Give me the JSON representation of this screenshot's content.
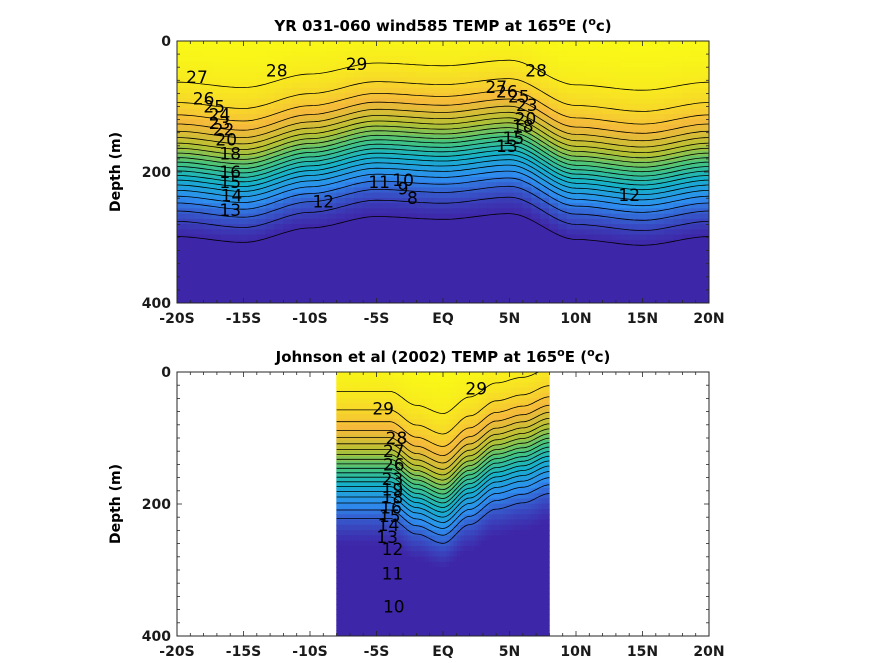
{
  "chart_data": [
    {
      "type": "heatmap",
      "subtype": "filled-contour",
      "title": "YR 031-060 wind585 TEMP at 165",
      "title_suffix_deg": "o",
      "title_mid": "E (",
      "title_unit_deg": "o",
      "title_end": "c)",
      "ylabel": "Depth (m)",
      "xlim": [
        -20,
        20
      ],
      "ylim": [
        400,
        0
      ],
      "y_reversed": true,
      "data_xlim": [
        -20,
        20
      ],
      "x_ticks": [
        -20,
        -15,
        -10,
        -5,
        0,
        5,
        10,
        15,
        20
      ],
      "x_tick_labels": [
        "-20S",
        "-15S",
        "-10S",
        "-5S",
        "EQ",
        "5N",
        "10N",
        "15N",
        "20N"
      ],
      "y_ticks": [
        0,
        200,
        400
      ],
      "y_tick_labels": [
        "0",
        "200",
        "400"
      ],
      "colormap": [
        "#3e26a8",
        "#2e8ef0",
        "#15b1c9",
        "#45c47e",
        "#b6c132",
        "#f5b93b",
        "#f9fb15"
      ],
      "color_range": [
        8,
        30
      ],
      "x": [
        -20,
        -15,
        -10,
        -5,
        0,
        5,
        10,
        15,
        20
      ],
      "thermocline_depth_m": [
        190,
        200,
        175,
        155,
        160,
        150,
        195,
        205,
        190
      ],
      "contour_levels": [
        8,
        9,
        10,
        11,
        12,
        13,
        14,
        15,
        16,
        17,
        18,
        19,
        20,
        21,
        22,
        23,
        24,
        25,
        26,
        27,
        28,
        29
      ],
      "contour_labels": [
        {
          "text": "29",
          "x": -6.5,
          "y": 35
        },
        {
          "text": "28",
          "x": -12.5,
          "y": 45
        },
        {
          "text": "28",
          "x": 7,
          "y": 45
        },
        {
          "text": "27",
          "x": -18.5,
          "y": 55
        },
        {
          "text": "27",
          "x": 4,
          "y": 70
        },
        {
          "text": "26",
          "x": 4.8,
          "y": 77
        },
        {
          "text": "25",
          "x": 5.7,
          "y": 85
        },
        {
          "text": "26",
          "x": -18,
          "y": 88
        },
        {
          "text": "25",
          "x": -17.2,
          "y": 100
        },
        {
          "text": "24",
          "x": -16.8,
          "y": 112
        },
        {
          "text": "23",
          "x": -16.8,
          "y": 125
        },
        {
          "text": "22",
          "x": -16.5,
          "y": 135
        },
        {
          "text": "20",
          "x": -16.3,
          "y": 150
        },
        {
          "text": "18",
          "x": -16,
          "y": 172
        },
        {
          "text": "16",
          "x": -16,
          "y": 200
        },
        {
          "text": "15",
          "x": -16,
          "y": 215
        },
        {
          "text": "14",
          "x": -15.9,
          "y": 236
        },
        {
          "text": "13",
          "x": -16,
          "y": 258
        },
        {
          "text": "23",
          "x": 6.3,
          "y": 98
        },
        {
          "text": "20",
          "x": 6.2,
          "y": 118
        },
        {
          "text": "18",
          "x": 6,
          "y": 130
        },
        {
          "text": "15",
          "x": 5.3,
          "y": 148
        },
        {
          "text": "13",
          "x": 4.8,
          "y": 160
        },
        {
          "text": "11",
          "x": -4.8,
          "y": 215
        },
        {
          "text": "10",
          "x": -3,
          "y": 212
        },
        {
          "text": "9",
          "x": -3,
          "y": 225
        },
        {
          "text": "8",
          "x": -2.3,
          "y": 240
        },
        {
          "text": "12",
          "x": -9,
          "y": 245
        },
        {
          "text": "12",
          "x": 14,
          "y": 235
        }
      ]
    },
    {
      "type": "heatmap",
      "subtype": "filled-contour",
      "title": "Johnson et al (2002) TEMP at 165",
      "title_suffix_deg": "o",
      "title_mid": "E (",
      "title_unit_deg": "o",
      "title_end": "c)",
      "ylabel": "Depth (m)",
      "xlim": [
        -20,
        20
      ],
      "ylim": [
        400,
        0
      ],
      "y_reversed": true,
      "data_xlim": [
        -8,
        8
      ],
      "x_ticks": [
        -20,
        -15,
        -10,
        -5,
        0,
        5,
        10,
        15,
        20
      ],
      "x_tick_labels": [
        "-20S",
        "-15S",
        "-10S",
        "-5S",
        "EQ",
        "5N",
        "10N",
        "15N",
        "20N"
      ],
      "y_ticks": [
        0,
        200,
        400
      ],
      "y_tick_labels": [
        "0",
        "200",
        "400"
      ],
      "colormap": [
        "#3e26a8",
        "#2e8ef0",
        "#15b1c9",
        "#45c47e",
        "#b6c132",
        "#f5b93b",
        "#f9fb15"
      ],
      "color_range": [
        8,
        30
      ],
      "x": [
        -8,
        -4,
        -2,
        0,
        2,
        4,
        6,
        8
      ],
      "thermocline_depth_m": [
        150,
        150,
        175,
        190,
        160,
        135,
        125,
        110
      ],
      "contour_levels": [
        10,
        11,
        12,
        13,
        14,
        15,
        16,
        17,
        18,
        19,
        20,
        21,
        22,
        23,
        24,
        25,
        26,
        27,
        28,
        29
      ],
      "contour_labels": [
        {
          "text": "29",
          "x": -4.5,
          "y": 55
        },
        {
          "text": "29",
          "x": 2.5,
          "y": 25
        },
        {
          "text": "28",
          "x": -3.5,
          "y": 100
        },
        {
          "text": "27",
          "x": -3.7,
          "y": 120
        },
        {
          "text": "26",
          "x": -3.7,
          "y": 140
        },
        {
          "text": "23",
          "x": -3.8,
          "y": 162
        },
        {
          "text": "19",
          "x": -3.8,
          "y": 178
        },
        {
          "text": "18",
          "x": -3.8,
          "y": 190
        },
        {
          "text": "16",
          "x": -3.9,
          "y": 205
        },
        {
          "text": "15",
          "x": -4,
          "y": 218
        },
        {
          "text": "14",
          "x": -4.1,
          "y": 232
        },
        {
          "text": "13",
          "x": -4.2,
          "y": 250
        },
        {
          "text": "12",
          "x": -3.8,
          "y": 268
        },
        {
          "text": "11",
          "x": -3.8,
          "y": 305
        },
        {
          "text": "10",
          "x": -3.7,
          "y": 355
        }
      ]
    }
  ]
}
